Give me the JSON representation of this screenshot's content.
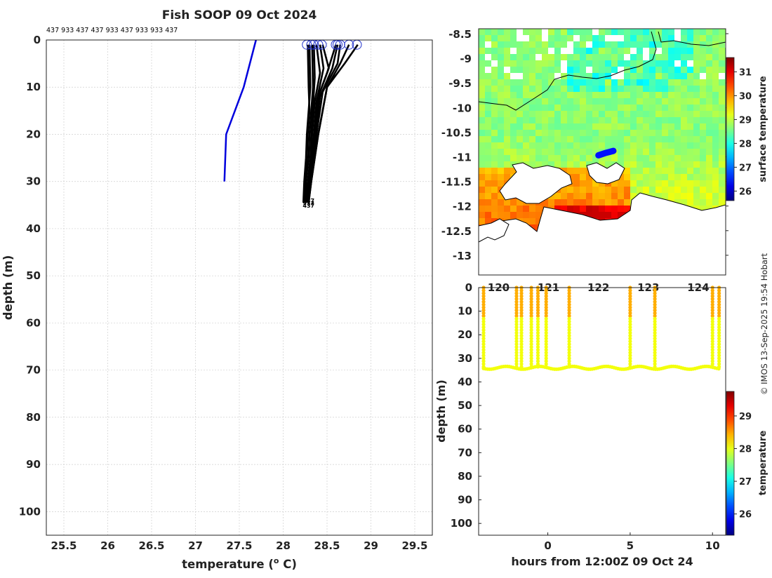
{
  "title": "Fish SOOP 09 Oct 2024",
  "vessel_ids": "437 933 437 437 933 437 933 933 437",
  "credit": "© IMOS 13-Sep-2025 19:54 Hobart",
  "chart_data": [
    {
      "type": "line",
      "name": "profile-plot",
      "xlabel": "temperature (",
      "xlabel_sup": "o",
      "xlabel_end": " C)",
      "ylabel": "depth (m)",
      "xlim": [
        25.3,
        29.7
      ],
      "ylim": [
        0,
        105
      ],
      "x_ticks": [
        25.5,
        26,
        26.5,
        27,
        27.5,
        28,
        28.5,
        29,
        29.5
      ],
      "y_ticks": [
        0,
        10,
        20,
        30,
        40,
        50,
        60,
        70,
        80,
        90,
        100
      ],
      "grid": true,
      "climatology": {
        "color": "#0000dd",
        "x": [
          27.69,
          27.55,
          27.35,
          27.33
        ],
        "y": [
          0,
          10,
          20,
          30
        ]
      },
      "profiles": [
        {
          "x": [
            28.28,
            28.29,
            28.3,
            28.28,
            28.27,
            28.25,
            28.24
          ],
          "y": [
            1,
            10,
            15,
            20,
            25,
            30,
            34.5
          ]
        },
        {
          "x": [
            28.3,
            28.31,
            28.29,
            28.27,
            28.26,
            28.24,
            28.23
          ],
          "y": [
            1,
            10,
            15,
            20,
            25,
            30,
            34.5
          ]
        },
        {
          "x": [
            28.33,
            28.34,
            28.32,
            28.3,
            28.29,
            28.26,
            28.25
          ],
          "y": [
            1,
            10,
            15,
            20,
            25,
            30,
            34.5
          ]
        },
        {
          "x": [
            28.35,
            28.36,
            28.34,
            28.32,
            28.31,
            28.28,
            28.26
          ],
          "y": [
            1,
            8,
            14,
            20,
            25,
            30,
            34.5
          ]
        },
        {
          "x": [
            28.38,
            28.42,
            28.36,
            28.33,
            28.32,
            28.29,
            28.27
          ],
          "y": [
            1,
            7,
            13,
            20,
            25,
            30,
            34.5
          ]
        },
        {
          "x": [
            28.42,
            28.46,
            28.38,
            28.35,
            28.33,
            28.3,
            28.28
          ],
          "y": [
            1,
            6,
            13,
            20,
            25,
            30,
            34.5
          ]
        },
        {
          "x": [
            28.45,
            28.52,
            28.4,
            28.36,
            28.34,
            28.31,
            28.28
          ],
          "y": [
            1,
            6,
            12,
            20,
            25,
            30,
            34.5
          ]
        },
        {
          "x": [
            28.6,
            28.5,
            28.4,
            28.36,
            28.34,
            28.31,
            28.27
          ],
          "y": [
            1,
            7,
            12,
            20,
            25,
            30,
            34.5
          ]
        },
        {
          "x": [
            28.62,
            28.56,
            28.42,
            28.37,
            28.35,
            28.31,
            28.28
          ],
          "y": [
            1,
            6,
            12,
            20,
            25,
            30,
            34.5
          ]
        },
        {
          "x": [
            28.65,
            28.62,
            28.45,
            28.38,
            28.35,
            28.32,
            28.28
          ],
          "y": [
            1,
            5,
            11,
            20,
            25,
            30,
            34.5
          ]
        },
        {
          "x": [
            28.75,
            28.65,
            28.5,
            28.4,
            28.36,
            28.32,
            28.29
          ],
          "y": [
            1,
            5,
            10,
            20,
            25,
            30,
            34.5
          ]
        },
        {
          "x": [
            28.85,
            28.7,
            28.5,
            28.4,
            28.36,
            28.32,
            28.29
          ],
          "y": [
            1,
            5,
            10,
            20,
            25,
            30,
            34.5
          ]
        }
      ],
      "surface_markers": [
        28.27,
        28.32,
        28.35,
        28.4,
        28.44,
        28.6,
        28.62,
        28.65,
        28.75,
        28.84
      ],
      "bottom_labels": [
        "437",
        "933",
        "437"
      ]
    },
    {
      "type": "heatmap",
      "name": "sst-map",
      "xlim": [
        119.6,
        124.55
      ],
      "ylim": [
        -13.4,
        -8.4
      ],
      "x_ticks": [
        120,
        121,
        122,
        123,
        124
      ],
      "y_ticks": [
        -8.5,
        -9,
        -9.5,
        -10,
        -10.5,
        -11,
        -11.5,
        -12,
        -12.5,
        -13
      ],
      "colorbar": {
        "label": "surface temperature",
        "ticks": [
          26,
          27,
          28,
          29,
          30,
          31
        ],
        "range": [
          25.6,
          31.6
        ]
      },
      "track": {
        "lon": [
          122.0,
          122.15,
          122.3
        ],
        "lat": [
          -10.97,
          -10.92,
          -10.88
        ]
      }
    },
    {
      "type": "scatter",
      "name": "time-depth",
      "xlabel": "hours from 12:00Z 09 Oct 24",
      "ylabel": "depth (m)",
      "xlim": [
        -4.2,
        10.8
      ],
      "ylim": [
        0,
        105
      ],
      "x_ticks": [
        0,
        5,
        10
      ],
      "y_ticks": [
        0,
        10,
        20,
        30,
        40,
        50,
        60,
        70,
        80,
        90,
        100
      ],
      "colorbar": {
        "label": "temperature",
        "ticks": [
          26,
          27,
          28,
          29
        ],
        "range": [
          25.35,
          29.75
        ]
      },
      "casts": [
        -3.9,
        -1.9,
        -1.6,
        -1.0,
        -0.6,
        -0.1,
        1.3,
        5.0,
        6.5,
        10.0,
        10.4
      ],
      "bottom_depth": 34,
      "surface_temp": 28.45,
      "deep_temp": 28.05
    }
  ]
}
